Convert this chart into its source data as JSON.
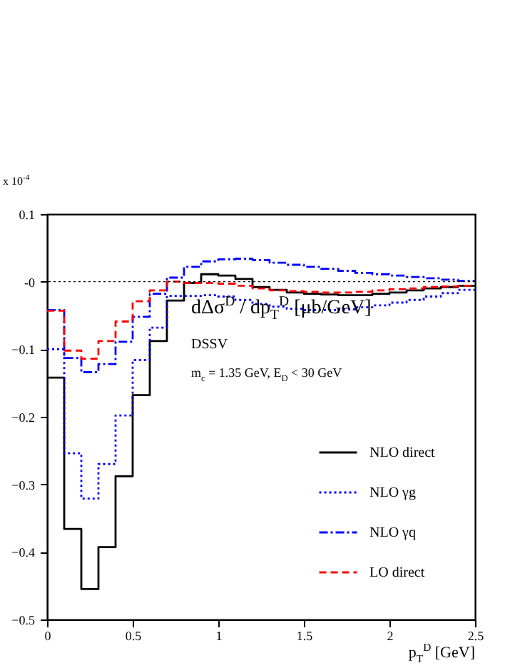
{
  "chart_data": {
    "type": "step",
    "x": [
      0,
      0.1,
      0.2,
      0.3,
      0.4,
      0.5,
      0.6,
      0.7,
      0.8,
      0.9,
      1.0,
      1.1,
      1.2,
      1.3,
      1.4,
      1.5,
      1.6,
      1.7,
      1.8,
      1.9,
      2.0,
      2.1,
      2.2,
      2.3,
      2.4,
      2.5
    ],
    "series": [
      {
        "name": "NLO direct",
        "color": "#000000",
        "line_style": "solid",
        "values": [
          -0.142,
          -0.366,
          -0.455,
          -0.393,
          -0.288,
          -0.168,
          -0.088,
          -0.028,
          -0.002,
          0.011,
          0.009,
          0.004,
          -0.008,
          -0.012,
          -0.016,
          -0.018,
          -0.019,
          -0.02,
          -0.02,
          -0.018,
          -0.016,
          -0.013,
          -0.01,
          -0.008,
          -0.006,
          -0.006
        ]
      },
      {
        "name": "NLO γg",
        "color": "#0000ff",
        "line_style": "dotted",
        "values": [
          -0.1,
          -0.254,
          -0.321,
          -0.27,
          -0.198,
          -0.116,
          -0.068,
          -0.021,
          -0.021,
          -0.02,
          -0.022,
          -0.027,
          -0.033,
          -0.037,
          -0.04,
          -0.042,
          -0.042,
          -0.041,
          -0.038,
          -0.035,
          -0.031,
          -0.027,
          -0.022,
          -0.017,
          -0.012,
          -0.012
        ]
      },
      {
        "name": "NLO γq",
        "color": "#0000ff",
        "line_style": "dashdot",
        "values": [
          -0.042,
          -0.113,
          -0.134,
          -0.122,
          -0.089,
          -0.052,
          -0.018,
          0.006,
          0.022,
          0.03,
          0.033,
          0.034,
          0.032,
          0.028,
          0.025,
          0.022,
          0.019,
          0.016,
          0.013,
          0.011,
          0.009,
          0.007,
          0.005,
          0.003,
          0.001,
          0.001
        ]
      },
      {
        "name": "LO direct",
        "color": "#ff0000",
        "line_style": "dashed",
        "values": [
          -0.043,
          -0.102,
          -0.114,
          -0.088,
          -0.059,
          -0.029,
          -0.013,
          0,
          -0.002,
          -0.002,
          -0.003,
          -0.006,
          -0.01,
          -0.013,
          -0.014,
          -0.015,
          -0.016,
          -0.016,
          -0.015,
          -0.013,
          -0.011,
          -0.01,
          -0.008,
          -0.007,
          -0.006,
          -0.006
        ]
      }
    ],
    "xlim": [
      0,
      2.5
    ],
    "xticks": [
      0,
      0.5,
      1,
      1.5,
      2,
      2.5
    ],
    "ylim": [
      -0.5,
      0.1
    ],
    "yticks": [
      0.1,
      {
        "value": 0,
        "label": "-0"
      },
      -0.1,
      -0.2,
      -0.3,
      -0.4,
      -0.5
    ],
    "xlabel": "p$_{T}$$^{D}$ [GeV]",
    "ref_lines": [
      {
        "axis": "y",
        "value": 0,
        "color": "#000000",
        "line_style": "dotted"
      }
    ],
    "annotations": [
      "x 10$^{-4}$",
      "dΔσ$^{D}$ / dp$_{T}$$^{D}$ [μb/GeV]",
      "DSSV",
      "m$_{c}$ = 1.35 GeV, E$_{D}$ < 30 GeV"
    ],
    "legend": "bottom right",
    "grid": false
  }
}
